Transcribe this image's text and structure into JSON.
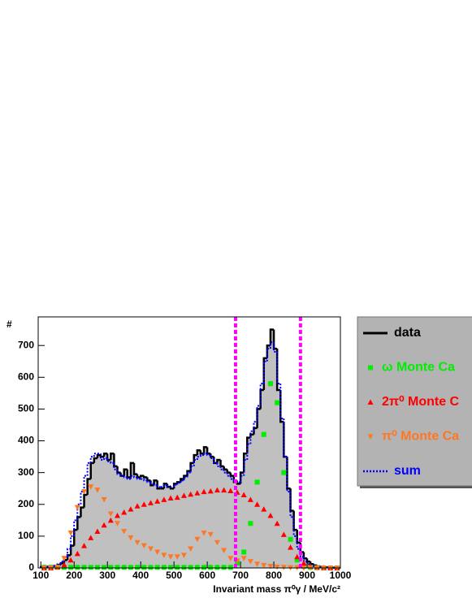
{
  "chart_data": {
    "type": "histogram",
    "ylabel": "#",
    "xlabel": "Invariant mass π⁰γ  /  MeV/c²",
    "xlim": [
      92,
      1000
    ],
    "ylim": [
      0,
      790
    ],
    "xticks": [
      100,
      200,
      300,
      400,
      500,
      600,
      700,
      800,
      900,
      1000
    ],
    "yticks": [
      0,
      100,
      200,
      300,
      400,
      500,
      600,
      700
    ],
    "bins": [
      100,
      110,
      120,
      130,
      140,
      150,
      160,
      170,
      180,
      190,
      200,
      210,
      220,
      230,
      240,
      250,
      260,
      270,
      280,
      290,
      300,
      310,
      320,
      330,
      340,
      350,
      360,
      370,
      380,
      390,
      400,
      410,
      420,
      430,
      440,
      450,
      460,
      470,
      480,
      490,
      500,
      510,
      520,
      530,
      540,
      550,
      560,
      570,
      580,
      590,
      600,
      610,
      620,
      630,
      640,
      650,
      660,
      670,
      680,
      690,
      700,
      710,
      720,
      730,
      740,
      750,
      760,
      770,
      780,
      790,
      800,
      810,
      820,
      830,
      840,
      850,
      860,
      870,
      880,
      890,
      900,
      910,
      920,
      930,
      940,
      950,
      960,
      970,
      980,
      990,
      1000
    ],
    "histograms": [
      {
        "name": "data",
        "color": "#000000",
        "fill": "#c0c0c0",
        "style": "solid",
        "values": [
          3,
          3,
          4,
          5,
          6,
          10,
          15,
          25,
          40,
          70,
          120,
          160,
          190,
          230,
          280,
          330,
          345,
          355,
          350,
          360,
          340,
          360,
          320,
          300,
          290,
          310,
          285,
          330,
          295,
          285,
          290,
          285,
          275,
          260,
          275,
          250,
          250,
          265,
          255,
          250,
          265,
          270,
          280,
          290,
          305,
          330,
          355,
          370,
          360,
          380,
          360,
          350,
          330,
          340,
          320,
          310,
          300,
          290,
          270,
          265,
          300,
          360,
          410,
          420,
          440,
          500,
          560,
          660,
          700,
          750,
          690,
          560,
          460,
          350,
          250,
          180,
          120,
          80,
          50,
          30,
          20,
          12,
          8,
          5,
          3,
          2,
          2,
          1,
          1,
          0
        ]
      },
      {
        "name": "sum",
        "color": "#0000ff",
        "style": "dotted",
        "values": [
          2,
          3,
          4,
          5,
          7,
          12,
          20,
          35,
          60,
          100,
          150,
          200,
          240,
          290,
          330,
          350,
          360,
          360,
          340,
          345,
          335,
          330,
          310,
          295,
          290,
          285,
          280,
          290,
          285,
          280,
          280,
          275,
          270,
          265,
          260,
          255,
          255,
          260,
          258,
          255,
          262,
          268,
          275,
          285,
          300,
          320,
          340,
          350,
          355,
          360,
          355,
          345,
          330,
          320,
          310,
          300,
          290,
          280,
          275,
          270,
          290,
          340,
          390,
          430,
          460,
          510,
          580,
          650,
          690,
          710,
          680,
          580,
          470,
          350,
          240,
          160,
          100,
          60,
          35,
          20,
          12,
          8,
          5,
          3,
          2,
          1,
          1,
          0,
          0,
          0
        ]
      }
    ],
    "x": [
      110,
      130,
      150,
      170,
      190,
      210,
      230,
      250,
      270,
      290,
      310,
      330,
      350,
      370,
      390,
      410,
      430,
      450,
      470,
      490,
      510,
      530,
      550,
      570,
      590,
      610,
      630,
      650,
      670,
      690,
      710,
      730,
      750,
      770,
      790,
      810,
      830,
      850,
      870,
      890,
      910,
      930,
      950,
      970,
      990
    ],
    "series": [
      {
        "name": "ω Monte Ca",
        "color": "#00ee00",
        "marker": "square",
        "values": [
          2,
          2,
          2,
          2,
          2,
          2,
          2,
          2,
          2,
          2,
          2,
          2,
          2,
          2,
          2,
          2,
          2,
          2,
          2,
          2,
          2,
          2,
          2,
          2,
          2,
          2,
          2,
          2,
          2,
          15,
          50,
          140,
          270,
          420,
          580,
          520,
          300,
          90,
          25,
          5,
          2,
          1,
          0,
          0,
          0
        ]
      },
      {
        "name": "2π⁰ Monte C",
        "color": "#ff0000",
        "marker": "triangle-up",
        "values": [
          0,
          0,
          3,
          10,
          25,
          45,
          70,
          95,
          115,
          135,
          150,
          165,
          175,
          185,
          195,
          200,
          205,
          210,
          215,
          220,
          222,
          228,
          232,
          236,
          240,
          242,
          245,
          245,
          243,
          238,
          230,
          215,
          200,
          185,
          165,
          140,
          105,
          65,
          35,
          15,
          6,
          2,
          1,
          0,
          0
        ]
      },
      {
        "name": "π⁰ Monte Ca",
        "color": "#ff7722",
        "marker": "triangle-down",
        "values": [
          0,
          0,
          2,
          30,
          110,
          190,
          240,
          255,
          245,
          215,
          170,
          140,
          115,
          95,
          80,
          70,
          60,
          50,
          40,
          35,
          35,
          40,
          60,
          90,
          110,
          105,
          80,
          55,
          30,
          22,
          30,
          20,
          12,
          8,
          5,
          3,
          2,
          1,
          1,
          0,
          0,
          0,
          0,
          0,
          0
        ]
      }
    ],
    "vlines": [
      685,
      880
    ],
    "vline_color": "#ff00ff",
    "legend_background": "#b3b3b3"
  }
}
